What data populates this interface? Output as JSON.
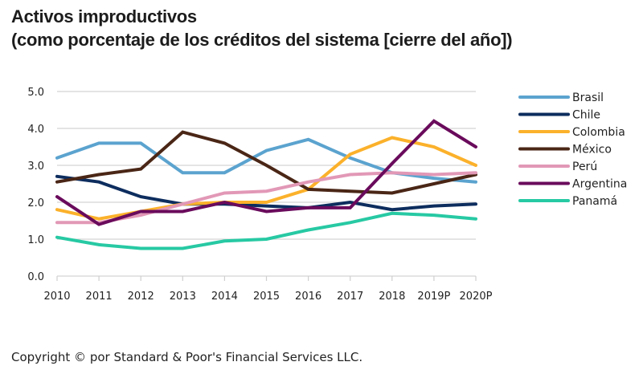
{
  "title_line1": "Activos improductivos",
  "title_line2": "(como porcentaje de los créditos del sistema [cierre del año])",
  "copyright": "Copyright © por Standard & Poor's Financial Services LLC.",
  "chart_data": {
    "type": "line",
    "title": "Activos improductivos (como porcentaje de los créditos del sistema [cierre del año])",
    "xlabel": "",
    "ylabel": "",
    "categories": [
      "2010",
      "2011",
      "2012",
      "2013",
      "2014",
      "2015",
      "2016",
      "2017",
      "2018",
      "2019P",
      "2020P"
    ],
    "ylim": [
      0,
      5
    ],
    "yticks": [
      "0.0",
      "1.0",
      "2.0",
      "3.0",
      "4.0",
      "5.0"
    ],
    "grid": true,
    "legend_position": "right",
    "series": [
      {
        "name": "Brasil",
        "color": "#5ba3cf",
        "values": [
          3.2,
          3.6,
          3.6,
          2.8,
          2.8,
          3.4,
          3.7,
          3.2,
          2.8,
          2.65,
          2.55
        ]
      },
      {
        "name": "Chile",
        "color": "#0d2d5e",
        "values": [
          2.7,
          2.55,
          2.15,
          1.95,
          1.95,
          1.9,
          1.85,
          2.0,
          1.8,
          1.9,
          1.95
        ]
      },
      {
        "name": "Colombia",
        "color": "#fbb12b",
        "values": [
          1.8,
          1.55,
          1.75,
          1.95,
          2.0,
          2.0,
          2.35,
          3.3,
          3.75,
          3.5,
          3.0
        ]
      },
      {
        "name": "México",
        "color": "#4a2616",
        "values": [
          2.55,
          2.75,
          2.9,
          3.9,
          3.6,
          3.0,
          2.35,
          2.3,
          2.25,
          2.5,
          2.75
        ]
      },
      {
        "name": "Perú",
        "color": "#e298b6",
        "values": [
          1.45,
          1.45,
          1.65,
          1.95,
          2.25,
          2.3,
          2.55,
          2.75,
          2.8,
          2.75,
          2.8
        ]
      },
      {
        "name": "Argentina",
        "color": "#6a0b5c",
        "values": [
          2.15,
          1.4,
          1.75,
          1.75,
          2.0,
          1.75,
          1.85,
          1.85,
          3.05,
          4.2,
          3.5
        ]
      },
      {
        "name": "Panamá",
        "color": "#27c9a3",
        "values": [
          1.05,
          0.85,
          0.75,
          0.75,
          0.95,
          1.0,
          1.25,
          1.45,
          1.7,
          1.65,
          1.55
        ]
      }
    ]
  }
}
